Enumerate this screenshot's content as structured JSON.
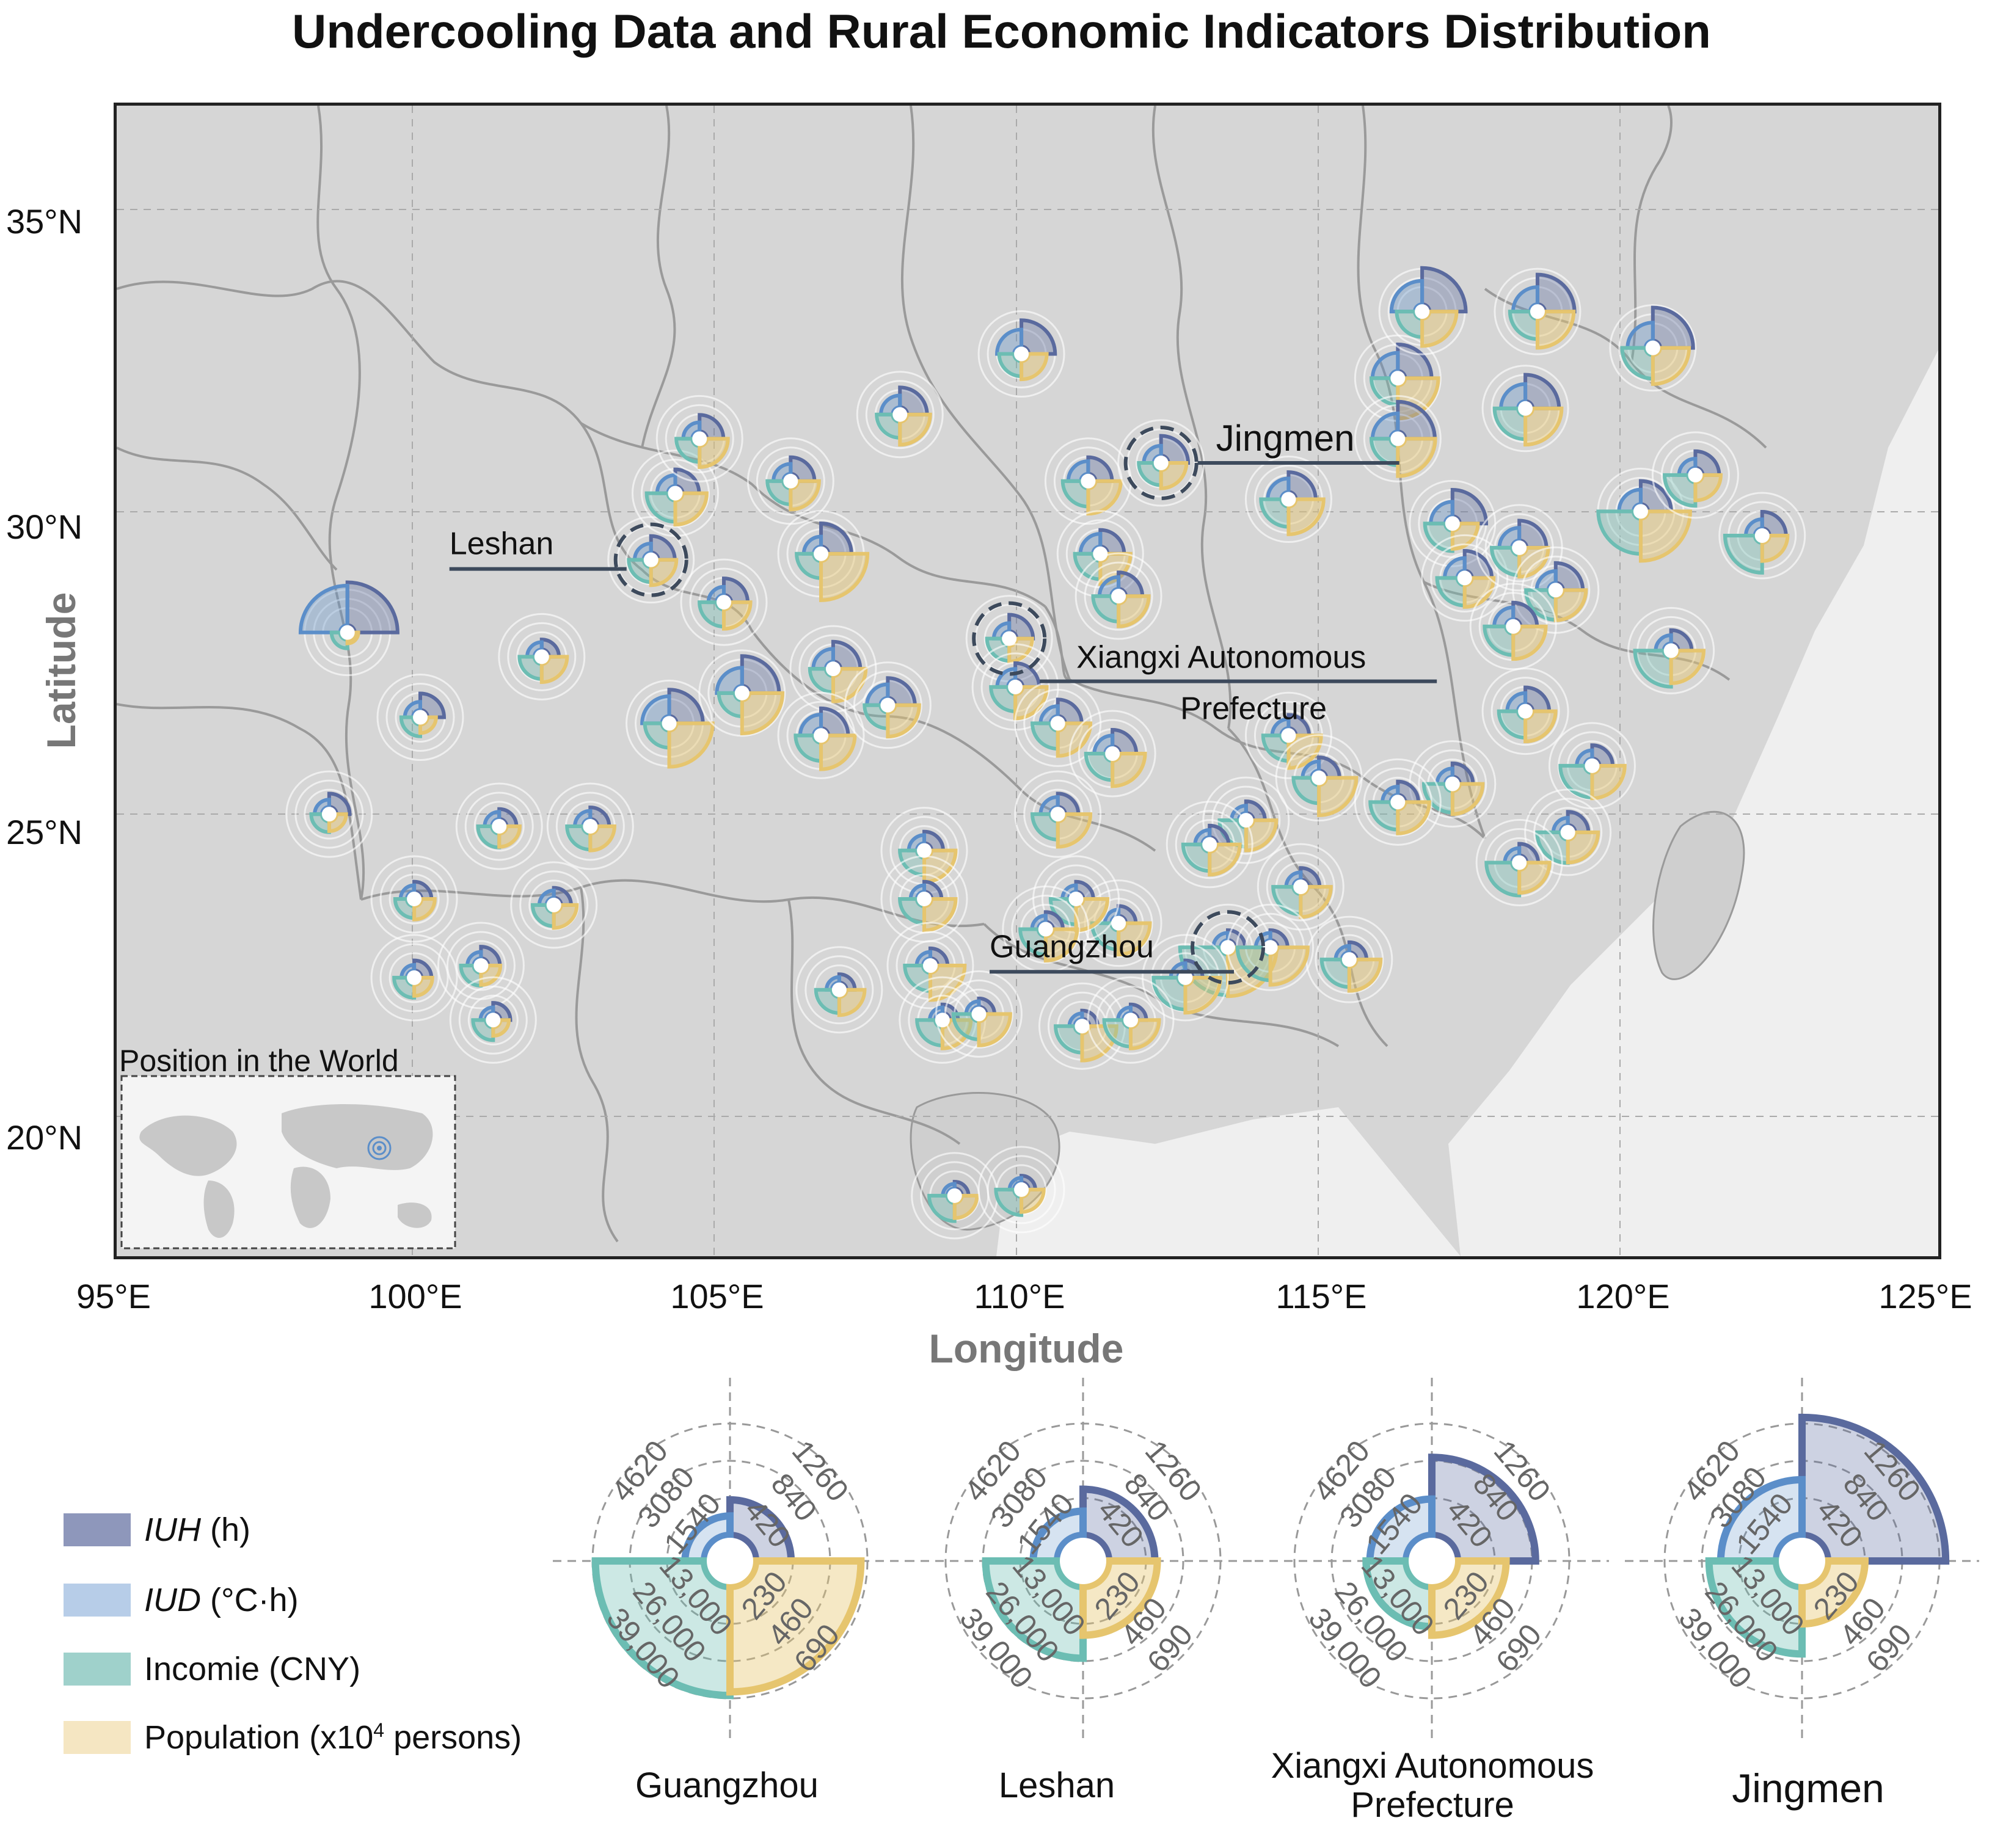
{
  "title": "Undercooling Data and Rural Economic Indicators Distribution",
  "chart_data": [
    {
      "type": "map",
      "xlabel": "Longitude",
      "ylabel": "Latitude",
      "xticks": [
        "95°E",
        "100°E",
        "105°E",
        "110°E",
        "115°E",
        "120°E",
        "125°E"
      ],
      "yticks": [
        "35°N",
        "30°N",
        "25°N",
        "20°N"
      ],
      "xlim": [
        95,
        125
      ],
      "ylim": [
        18,
        37
      ],
      "grid": true,
      "inset_title": "Position in the World",
      "highlighted_cities": [
        {
          "name": "Leshan",
          "lon": 103.8,
          "lat": 29.5
        },
        {
          "name": "Jingmen",
          "lon": 112.2,
          "lat": 31.1
        },
        {
          "name": "Xiangxi Autonomous Prefecture",
          "lon": 109.7,
          "lat": 28.2
        },
        {
          "name": "Guangzhou",
          "lon": 113.3,
          "lat": 23.1
        }
      ],
      "sites": [
        {
          "lon": 98.8,
          "lat": 28.3,
          "iuh": 1300,
          "iud": 4400,
          "inc": 8000,
          "pop": 60
        },
        {
          "lon": 100.0,
          "lat": 26.9,
          "iuh": 500,
          "iud": 900,
          "inc": 11000,
          "pop": 140
        },
        {
          "lon": 98.5,
          "lat": 25.3,
          "iuh": 400,
          "iud": 800,
          "inc": 10000,
          "pop": 160
        },
        {
          "lon": 99.9,
          "lat": 23.9,
          "iuh": 300,
          "iud": 700,
          "inc": 11000,
          "pop": 220
        },
        {
          "lon": 99.9,
          "lat": 22.6,
          "iuh": 300,
          "iud": 600,
          "inc": 12000,
          "pop": 180
        },
        {
          "lon": 101.0,
          "lat": 22.8,
          "iuh": 350,
          "iud": 700,
          "inc": 12000,
          "pop": 200
        },
        {
          "lon": 101.2,
          "lat": 21.9,
          "iuh": 300,
          "iud": 600,
          "inc": 12000,
          "pop": 140
        },
        {
          "lon": 101.3,
          "lat": 25.1,
          "iuh": 300,
          "iud": 800,
          "inc": 13000,
          "pop": 220
        },
        {
          "lon": 102.2,
          "lat": 23.8,
          "iuh": 300,
          "iud": 800,
          "inc": 13000,
          "pop": 260
        },
        {
          "lon": 102.8,
          "lat": 25.1,
          "iuh": 350,
          "iud": 900,
          "inc": 15000,
          "pop": 280
        },
        {
          "lon": 102.0,
          "lat": 27.9,
          "iuh": 300,
          "iud": 800,
          "inc": 14000,
          "pop": 300
        },
        {
          "lon": 103.8,
          "lat": 29.5,
          "iuh": 500,
          "iud": 1000,
          "inc": 14000,
          "pop": 300
        },
        {
          "lon": 104.2,
          "lat": 30.6,
          "iuh": 500,
          "iud": 1200,
          "inc": 20000,
          "pop": 400
        },
        {
          "lon": 104.6,
          "lat": 31.5,
          "iuh": 500,
          "iud": 1000,
          "inc": 15000,
          "pop": 350
        },
        {
          "lon": 105.0,
          "lat": 28.8,
          "iuh": 500,
          "iud": 900,
          "inc": 16000,
          "pop": 320
        },
        {
          "lon": 104.1,
          "lat": 26.8,
          "iuh": 800,
          "iud": 2200,
          "inc": 16000,
          "pop": 600
        },
        {
          "lon": 105.3,
          "lat": 27.3,
          "iuh": 900,
          "iud": 2000,
          "inc": 15000,
          "pop": 550
        },
        {
          "lon": 106.1,
          "lat": 30.8,
          "iuh": 500,
          "iud": 1100,
          "inc": 15000,
          "pop": 350
        },
        {
          "lon": 106.6,
          "lat": 29.6,
          "iuh": 700,
          "iud": 1100,
          "inc": 16000,
          "pop": 650
        },
        {
          "lon": 106.8,
          "lat": 27.7,
          "iuh": 600,
          "iud": 1400,
          "inc": 15000,
          "pop": 420
        },
        {
          "lon": 106.6,
          "lat": 26.6,
          "iuh": 600,
          "iud": 1500,
          "inc": 17000,
          "pop": 440
        },
        {
          "lon": 107.7,
          "lat": 27.1,
          "iuh": 600,
          "iud": 1500,
          "inc": 15000,
          "pop": 400
        },
        {
          "lon": 107.9,
          "lat": 31.9,
          "iuh": 600,
          "iud": 1300,
          "inc": 15000,
          "pop": 380
        },
        {
          "lon": 109.9,
          "lat": 32.9,
          "iuh": 800,
          "iud": 1900,
          "inc": 14000,
          "pop": 300
        },
        {
          "lon": 109.7,
          "lat": 28.2,
          "iuh": 500,
          "iud": 900,
          "inc": 14000,
          "pop": 260
        },
        {
          "lon": 109.8,
          "lat": 27.4,
          "iuh": 500,
          "iud": 1200,
          "inc": 16000,
          "pop": 400
        },
        {
          "lon": 110.5,
          "lat": 26.8,
          "iuh": 500,
          "iud": 1100,
          "inc": 17000,
          "pop": 420
        },
        {
          "lon": 111.0,
          "lat": 30.8,
          "iuh": 500,
          "iud": 1400,
          "inc": 17000,
          "pop": 420
        },
        {
          "lon": 111.2,
          "lat": 29.6,
          "iuh": 500,
          "iud": 1400,
          "inc": 17000,
          "pop": 380
        },
        {
          "lon": 111.5,
          "lat": 28.9,
          "iuh": 500,
          "iud": 1300,
          "inc": 17000,
          "pop": 380
        },
        {
          "lon": 111.4,
          "lat": 26.3,
          "iuh": 500,
          "iud": 1200,
          "inc": 18000,
          "pop": 420
        },
        {
          "lon": 110.5,
          "lat": 25.3,
          "iuh": 400,
          "iud": 1100,
          "inc": 17000,
          "pop": 420
        },
        {
          "lon": 112.2,
          "lat": 31.1,
          "iuh": 600,
          "iud": 1100,
          "inc": 14000,
          "pop": 300
        },
        {
          "lon": 114.3,
          "lat": 30.5,
          "iuh": 600,
          "iud": 1500,
          "inc": 19000,
          "pop": 460
        },
        {
          "lon": 114.3,
          "lat": 26.6,
          "iuh": 400,
          "iud": 1000,
          "inc": 17000,
          "pop": 420
        },
        {
          "lon": 114.8,
          "lat": 25.9,
          "iuh": 400,
          "iud": 1000,
          "inc": 17000,
          "pop": 500
        },
        {
          "lon": 116.1,
          "lat": 32.5,
          "iuh": 800,
          "iud": 2000,
          "inc": 18000,
          "pop": 550
        },
        {
          "lon": 116.5,
          "lat": 33.6,
          "iuh": 1100,
          "iud": 2600,
          "inc": 17000,
          "pop": 450
        },
        {
          "lon": 116.1,
          "lat": 31.5,
          "iuh": 900,
          "iud": 2000,
          "inc": 18000,
          "pop": 500
        },
        {
          "lon": 117.0,
          "lat": 30.1,
          "iuh": 800,
          "iud": 1600,
          "inc": 19000,
          "pop": 300
        },
        {
          "lon": 117.2,
          "lat": 29.2,
          "iuh": 600,
          "iud": 1400,
          "inc": 19000,
          "pop": 360
        },
        {
          "lon": 118.4,
          "lat": 33.6,
          "iuh": 900,
          "iud": 1900,
          "inc": 19000,
          "pop": 480
        },
        {
          "lon": 118.2,
          "lat": 32.0,
          "iuh": 800,
          "iud": 1900,
          "inc": 22000,
          "pop": 480
        },
        {
          "lon": 118.1,
          "lat": 29.7,
          "iuh": 600,
          "iud": 1400,
          "inc": 19000,
          "pop": 360
        },
        {
          "lon": 118.7,
          "lat": 29.0,
          "iuh": 600,
          "iud": 1300,
          "inc": 21000,
          "pop": 380
        },
        {
          "lon": 118.0,
          "lat": 28.4,
          "iuh": 500,
          "iud": 1300,
          "inc": 20000,
          "pop": 420
        },
        {
          "lon": 120.3,
          "lat": 33.0,
          "iuh": 1000,
          "iud": 2000,
          "inc": 22000,
          "pop": 480
        },
        {
          "lon": 120.1,
          "lat": 30.3,
          "iuh": 700,
          "iud": 1600,
          "inc": 33000,
          "pop": 700
        },
        {
          "lon": 121.0,
          "lat": 30.9,
          "iuh": 500,
          "iud": 1000,
          "inc": 22000,
          "pop": 300
        },
        {
          "lon": 122.1,
          "lat": 29.9,
          "iuh": 500,
          "iud": 1000,
          "inc": 28000,
          "pop": 300
        },
        {
          "lon": 120.6,
          "lat": 28.0,
          "iuh": 400,
          "iud": 900,
          "inc": 27000,
          "pop": 420
        },
        {
          "lon": 118.2,
          "lat": 27.0,
          "iuh": 500,
          "iud": 1200,
          "inc": 18000,
          "pop": 380
        },
        {
          "lon": 119.3,
          "lat": 26.1,
          "iuh": 400,
          "iud": 900,
          "inc": 23000,
          "pop": 420
        },
        {
          "lon": 118.9,
          "lat": 25.0,
          "iuh": 400,
          "iud": 800,
          "inc": 22000,
          "pop": 380
        },
        {
          "lon": 118.1,
          "lat": 24.5,
          "iuh": 350,
          "iud": 800,
          "inc": 24000,
          "pop": 380
        },
        {
          "lon": 117.0,
          "lat": 25.8,
          "iuh": 400,
          "iud": 900,
          "inc": 20000,
          "pop": 380
        },
        {
          "lon": 116.1,
          "lat": 25.5,
          "iuh": 400,
          "iud": 900,
          "inc": 19000,
          "pop": 400
        },
        {
          "lon": 114.5,
          "lat": 24.1,
          "iuh": 350,
          "iud": 800,
          "inc": 19000,
          "pop": 380
        },
        {
          "lon": 115.3,
          "lat": 22.9,
          "iuh": 300,
          "iud": 700,
          "inc": 19000,
          "pop": 400
        },
        {
          "lon": 113.6,
          "lat": 25.2,
          "iuh": 350,
          "iud": 800,
          "inc": 18000,
          "pop": 380
        },
        {
          "lon": 113.0,
          "lat": 24.8,
          "iuh": 350,
          "iud": 800,
          "inc": 18000,
          "pop": 380
        },
        {
          "lon": 113.3,
          "lat": 23.1,
          "iuh": 300,
          "iud": 800,
          "inc": 38000,
          "pop": 690
        },
        {
          "lon": 114.0,
          "lat": 23.1,
          "iuh": 300,
          "iud": 800,
          "inc": 24000,
          "pop": 500
        },
        {
          "lon": 112.6,
          "lat": 22.6,
          "iuh": 300,
          "iud": 800,
          "inc": 23000,
          "pop": 460
        },
        {
          "lon": 111.5,
          "lat": 23.5,
          "iuh": 300,
          "iud": 700,
          "inc": 18000,
          "pop": 400
        },
        {
          "lon": 110.8,
          "lat": 23.9,
          "iuh": 300,
          "iud": 700,
          "inc": 17000,
          "pop": 400
        },
        {
          "lon": 110.3,
          "lat": 23.4,
          "iuh": 300,
          "iud": 700,
          "inc": 17000,
          "pop": 400
        },
        {
          "lon": 108.3,
          "lat": 24.7,
          "iuh": 350,
          "iud": 900,
          "inc": 16000,
          "pop": 400
        },
        {
          "lon": 108.3,
          "lat": 23.9,
          "iuh": 300,
          "iud": 700,
          "inc": 16000,
          "pop": 400
        },
        {
          "lon": 108.4,
          "lat": 22.8,
          "iuh": 300,
          "iud": 700,
          "inc": 17000,
          "pop": 450
        },
        {
          "lon": 106.9,
          "lat": 22.4,
          "iuh": 250,
          "iud": 600,
          "inc": 15000,
          "pop": 300
        },
        {
          "lon": 108.6,
          "lat": 21.9,
          "iuh": 250,
          "iud": 600,
          "inc": 17000,
          "pop": 350
        },
        {
          "lon": 109.2,
          "lat": 22.0,
          "iuh": 250,
          "iud": 600,
          "inc": 17000,
          "pop": 400
        },
        {
          "lon": 110.9,
          "lat": 21.8,
          "iuh": 250,
          "iud": 600,
          "inc": 18000,
          "pop": 450
        },
        {
          "lon": 111.7,
          "lat": 21.9,
          "iuh": 250,
          "iud": 600,
          "inc": 18000,
          "pop": 350
        },
        {
          "lon": 108.8,
          "lat": 19.0,
          "iuh": 200,
          "iud": 500,
          "inc": 17000,
          "pop": 250
        },
        {
          "lon": 109.9,
          "lat": 19.1,
          "iuh": 200,
          "iud": 500,
          "inc": 17000,
          "pop": 250
        }
      ]
    },
    {
      "type": "polar",
      "name": "Guangzhou",
      "iuh_ticks": [
        "420",
        "840",
        "1260"
      ],
      "iud_ticks": [
        "1540",
        "3080",
        "4620"
      ],
      "income_ticks": [
        "13,000",
        "26,000",
        "39,000"
      ],
      "population_ticks": [
        "230",
        "460",
        "690"
      ],
      "iuh": 400,
      "iud": 800,
      "income": 38000,
      "population": 650
    },
    {
      "type": "polar",
      "name": "Leshan",
      "iuh_ticks": [
        "420",
        "840",
        "1260"
      ],
      "iud_ticks": [
        "1540",
        "3080",
        "4620"
      ],
      "income_ticks": [
        "13,000",
        "26,000",
        "39,000"
      ],
      "population_ticks": [
        "230",
        "460",
        "690"
      ],
      "iuh": 520,
      "iud": 1000,
      "income": 25000,
      "population": 300
    },
    {
      "type": "polar",
      "name": "Xiangxi Autonomous Prefecture",
      "iuh_ticks": [
        "420",
        "840",
        "1260"
      ],
      "iud_ticks": [
        "1540",
        "3080",
        "4620"
      ],
      "income_ticks": [
        "13,000",
        "26,000",
        "39,000"
      ],
      "population_ticks": [
        "230",
        "460",
        "690"
      ],
      "iuh": 880,
      "iud": 1500,
      "income": 14000,
      "population": 300
    },
    {
      "type": "polar",
      "name": "Jingmen",
      "iuh_ticks": [
        "420",
        "840",
        "1260"
      ],
      "iud_ticks": [
        "1540",
        "3080",
        "4620"
      ],
      "income_ticks": [
        "13,000",
        "26,000",
        "39,000"
      ],
      "population_ticks": [
        "230",
        "460",
        "690"
      ],
      "iuh": 1330,
      "iud": 2300,
      "income": 23500,
      "population": 230
    }
  ],
  "legend": [
    {
      "label_italic": "IUH",
      "label_rest": " (h)",
      "color": "#8e97bb"
    },
    {
      "label_italic": "IUD",
      "label_rest": " (°C·h)",
      "color": "#b7cde8"
    },
    {
      "label_italic": "",
      "label_rest": "Incomie (CNY)",
      "color": "#9fd1cb"
    },
    {
      "label_italic": "",
      "label_rest": "Population (x10",
      "sup": "4",
      "label_after": " persons)",
      "color": "#f5e6c2"
    }
  ],
  "colors": {
    "iuh": "#5a6a9e",
    "iud": "#5b8ec9",
    "income": "#6cbdb3",
    "population": "#e6c56e",
    "callout": "#3d4a5c"
  }
}
